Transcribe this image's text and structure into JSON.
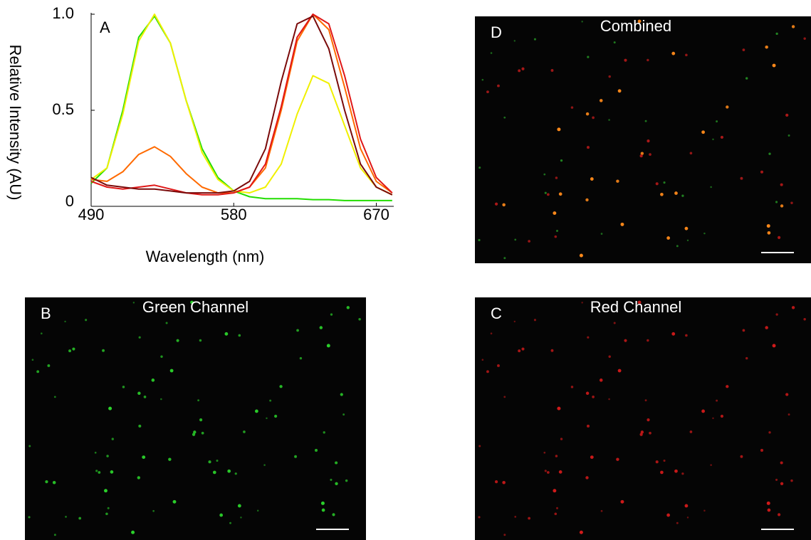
{
  "chart_data": {
    "type": "line",
    "panel_label": "A",
    "x_label": "Wavelength (nm)",
    "y_label": "Relative Intensity (AU)",
    "x": [
      490,
      500,
      510,
      520,
      530,
      540,
      550,
      560,
      570,
      580,
      590,
      600,
      610,
      620,
      630,
      640,
      650,
      660,
      670,
      680
    ],
    "series": [
      {
        "color": "#22dd00",
        "values": [
          0.12,
          0.2,
          0.5,
          0.88,
          0.99,
          0.85,
          0.55,
          0.3,
          0.15,
          0.08,
          0.05,
          0.04,
          0.04,
          0.04,
          0.035,
          0.035,
          0.03,
          0.03,
          0.03,
          0.03
        ]
      },
      {
        "color": "#f0f000",
        "values": [
          0.14,
          0.2,
          0.48,
          0.86,
          1.0,
          0.85,
          0.55,
          0.28,
          0.14,
          0.08,
          0.07,
          0.1,
          0.22,
          0.48,
          0.68,
          0.64,
          0.42,
          0.2,
          0.1,
          0.06
        ]
      },
      {
        "color": "#ff6a00",
        "values": [
          0.14,
          0.13,
          0.18,
          0.27,
          0.31,
          0.26,
          0.17,
          0.1,
          0.07,
          0.07,
          0.1,
          0.2,
          0.5,
          0.86,
          1.0,
          0.92,
          0.62,
          0.3,
          0.13,
          0.07
        ]
      },
      {
        "color": "#e01818",
        "values": [
          0.13,
          0.1,
          0.09,
          0.1,
          0.11,
          0.09,
          0.07,
          0.06,
          0.06,
          0.07,
          0.1,
          0.22,
          0.52,
          0.88,
          1.0,
          0.95,
          0.68,
          0.35,
          0.15,
          0.07
        ]
      },
      {
        "color": "#7a0a0a",
        "values": [
          0.15,
          0.11,
          0.1,
          0.09,
          0.09,
          0.08,
          0.07,
          0.07,
          0.07,
          0.08,
          0.13,
          0.3,
          0.65,
          0.95,
          0.99,
          0.82,
          0.5,
          0.22,
          0.1,
          0.06
        ]
      }
    ],
    "xlim": [
      490,
      681
    ],
    "ylim": [
      0,
      1
    ],
    "xticks": [
      490,
      580,
      670
    ],
    "yticks": [
      0,
      0.5,
      {
        "value": 1,
        "label": "1.0"
      }
    ]
  },
  "panels": [
    {
      "label": "D",
      "title": "Combined"
    },
    {
      "label": "B",
      "title": "Green Channel"
    },
    {
      "label": "C",
      "title": "Red Channel"
    }
  ]
}
